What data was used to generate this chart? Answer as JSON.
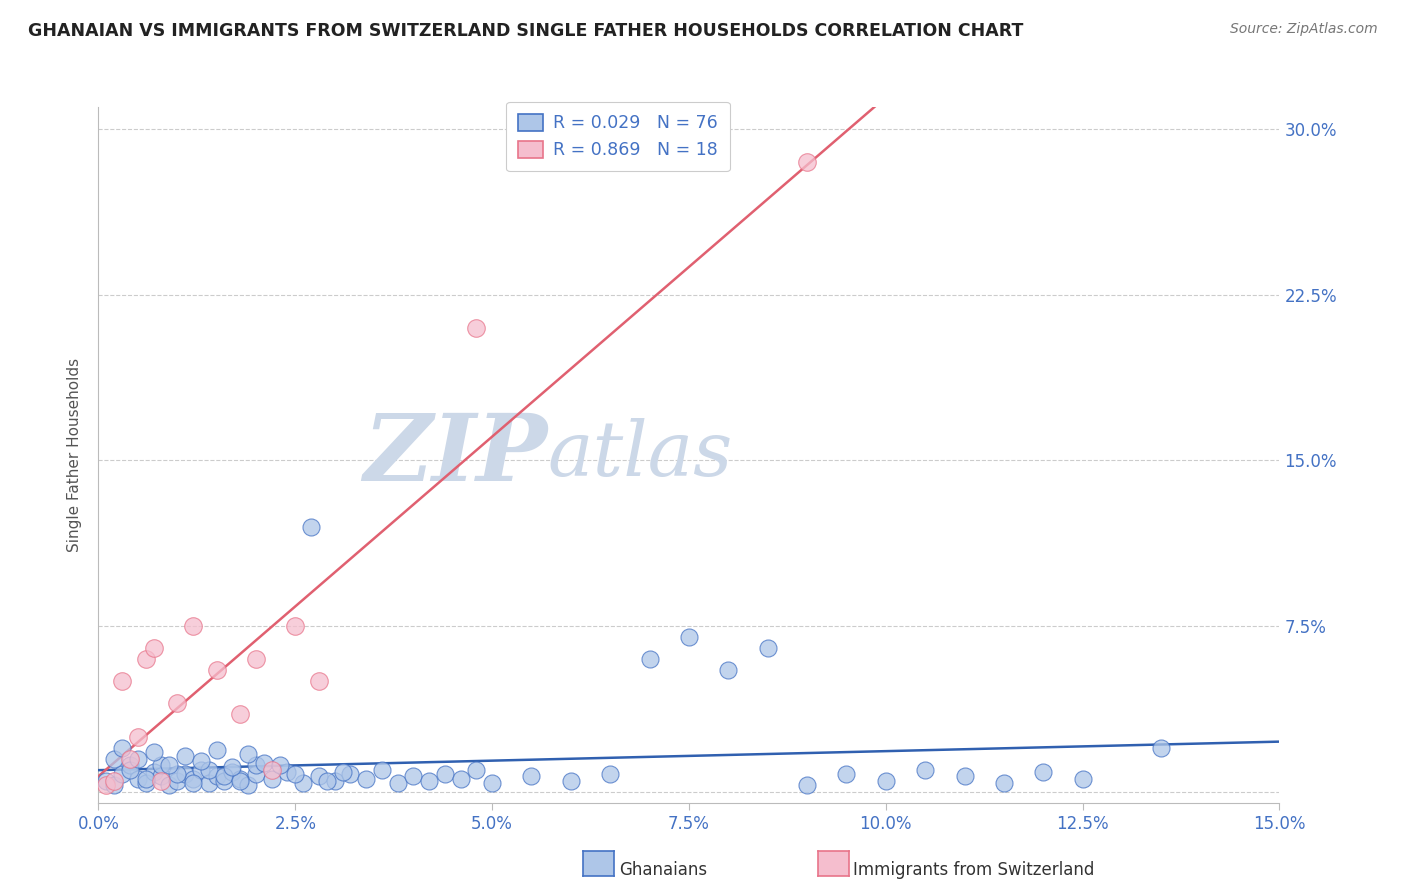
{
  "title": "GHANAIAN VS IMMIGRANTS FROM SWITZERLAND SINGLE FATHER HOUSEHOLDS CORRELATION CHART",
  "source": "Source: ZipAtlas.com",
  "ylabel": "Single Father Households",
  "xlim": [
    0.0,
    0.15
  ],
  "ylim": [
    -0.005,
    0.31
  ],
  "xticks": [
    0.0,
    0.025,
    0.05,
    0.075,
    0.1,
    0.125,
    0.15
  ],
  "yticks": [
    0.0,
    0.075,
    0.15,
    0.225,
    0.3
  ],
  "xticklabels": [
    "0.0%",
    "2.5%",
    "5.0%",
    "7.5%",
    "10.0%",
    "12.5%",
    "15.0%"
  ],
  "yticklabels": [
    "",
    "7.5%",
    "15.0%",
    "22.5%",
    "30.0%"
  ],
  "legend_line1": "R = 0.029   N = 76",
  "legend_line2": "R = 0.869   N = 18",
  "color_ghanaian_fill": "#aec6e8",
  "color_ghanaian_edge": "#4472c4",
  "color_swiss_fill": "#f5bece",
  "color_swiss_edge": "#e8748a",
  "color_line_ghanaian": "#3060b0",
  "color_line_swiss": "#e06070",
  "color_axis_ticks": "#4472c4",
  "color_title": "#222222",
  "watermark_zip_color": "#ccd8e8",
  "watermark_atlas_color": "#ccd8e8",
  "background_color": "#ffffff",
  "gh_x": [
    0.001,
    0.002,
    0.003,
    0.004,
    0.005,
    0.006,
    0.007,
    0.008,
    0.009,
    0.01,
    0.011,
    0.012,
    0.013,
    0.014,
    0.015,
    0.016,
    0.017,
    0.018,
    0.019,
    0.02,
    0.002,
    0.004,
    0.006,
    0.008,
    0.01,
    0.012,
    0.014,
    0.016,
    0.018,
    0.02,
    0.022,
    0.024,
    0.026,
    0.028,
    0.03,
    0.032,
    0.034,
    0.036,
    0.038,
    0.04,
    0.042,
    0.044,
    0.046,
    0.048,
    0.05,
    0.055,
    0.06,
    0.065,
    0.07,
    0.075,
    0.08,
    0.085,
    0.09,
    0.095,
    0.1,
    0.105,
    0.11,
    0.115,
    0.12,
    0.125,
    0.003,
    0.005,
    0.007,
    0.009,
    0.011,
    0.013,
    0.015,
    0.017,
    0.019,
    0.021,
    0.023,
    0.025,
    0.027,
    0.029,
    0.031,
    0.135
  ],
  "gh_y": [
    0.005,
    0.003,
    0.008,
    0.012,
    0.006,
    0.004,
    0.009,
    0.007,
    0.003,
    0.005,
    0.008,
    0.006,
    0.01,
    0.004,
    0.007,
    0.005,
    0.009,
    0.006,
    0.003,
    0.008,
    0.015,
    0.01,
    0.006,
    0.012,
    0.008,
    0.004,
    0.01,
    0.007,
    0.005,
    0.012,
    0.006,
    0.009,
    0.004,
    0.007,
    0.005,
    0.008,
    0.006,
    0.01,
    0.004,
    0.007,
    0.005,
    0.008,
    0.006,
    0.01,
    0.004,
    0.007,
    0.005,
    0.008,
    0.06,
    0.07,
    0.055,
    0.065,
    0.003,
    0.008,
    0.005,
    0.01,
    0.007,
    0.004,
    0.009,
    0.006,
    0.02,
    0.015,
    0.018,
    0.012,
    0.016,
    0.014,
    0.019,
    0.011,
    0.017,
    0.013,
    0.012,
    0.008,
    0.12,
    0.005,
    0.009,
    0.02
  ],
  "sw_x": [
    0.001,
    0.002,
    0.003,
    0.004,
    0.005,
    0.006,
    0.007,
    0.008,
    0.01,
    0.012,
    0.015,
    0.018,
    0.02,
    0.022,
    0.025,
    0.028,
    0.048,
    0.09
  ],
  "sw_y": [
    0.003,
    0.005,
    0.05,
    0.015,
    0.025,
    0.06,
    0.065,
    0.005,
    0.04,
    0.075,
    0.055,
    0.035,
    0.06,
    0.01,
    0.075,
    0.05,
    0.21,
    0.285
  ]
}
